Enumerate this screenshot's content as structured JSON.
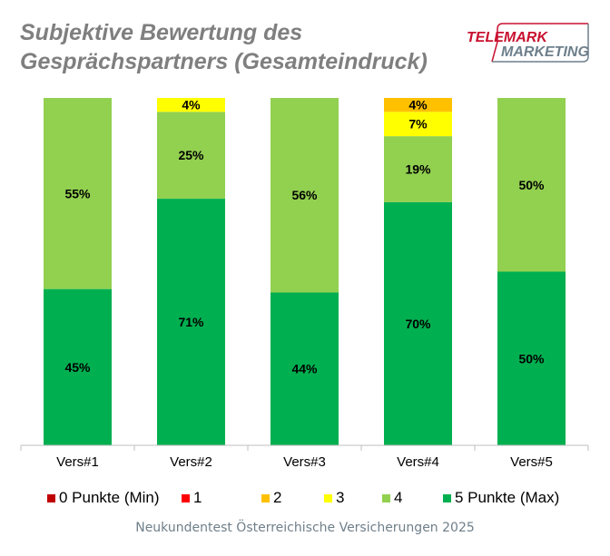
{
  "chart_data": {
    "type": "bar",
    "stacked": true,
    "title": "Subjektive Bewertung des Gesprächspartners (Gesamteindruck)",
    "categories": [
      "Vers#1",
      "Vers#2",
      "Vers#3",
      "Vers#4",
      "Vers#5"
    ],
    "series": [
      {
        "name": "5 Punkte (Max)",
        "color": "#00b050",
        "values": [
          45,
          71,
          44,
          70,
          50
        ],
        "labels": [
          "45%",
          "71%",
          "44%",
          "70%",
          "50%"
        ]
      },
      {
        "name": "4",
        "color": "#92d050",
        "values": [
          55,
          25,
          56,
          19,
          50
        ],
        "labels": [
          "55%",
          "25%",
          "56%",
          "19%",
          "50%"
        ]
      },
      {
        "name": "3",
        "color": "#ffff00",
        "values": [
          0,
          4,
          0,
          7,
          0
        ],
        "labels": [
          "",
          "4%",
          "",
          "7%",
          ""
        ]
      },
      {
        "name": "2",
        "color": "#ffc000",
        "values": [
          0,
          0,
          0,
          4,
          0
        ],
        "labels": [
          "",
          "",
          "",
          "4%",
          ""
        ]
      },
      {
        "name": "1",
        "color": "#ff0000",
        "values": [
          0,
          0,
          0,
          0,
          0
        ],
        "labels": [
          "",
          "",
          "",
          "",
          ""
        ]
      },
      {
        "name": "0 Punkte (Min)",
        "color": "#c00000",
        "values": [
          0,
          0,
          0,
          0,
          0
        ],
        "labels": [
          "",
          "",
          "",
          "",
          ""
        ]
      }
    ],
    "ylim": [
      0,
      100
    ],
    "legend": "bottom"
  },
  "header": {
    "title_line1": "Subjektive Bewertung des",
    "title_line2": "Gesprächspartners (Gesamteindruck)",
    "logo_line1": "TELEMARK",
    "logo_line2": "MARKETING"
  },
  "legend": {
    "items": [
      {
        "label": "0 Punkte (Min)",
        "color": "#c00000"
      },
      {
        "label": "1",
        "color": "#ff0000"
      },
      {
        "label": "2",
        "color": "#ffc000"
      },
      {
        "label": "3",
        "color": "#ffff00"
      },
      {
        "label": "4",
        "color": "#92d050"
      },
      {
        "label": "5 Punkte (Max)",
        "color": "#00b050"
      }
    ]
  },
  "footer": "Neukundentest Österreichische Versicherungen 2025"
}
